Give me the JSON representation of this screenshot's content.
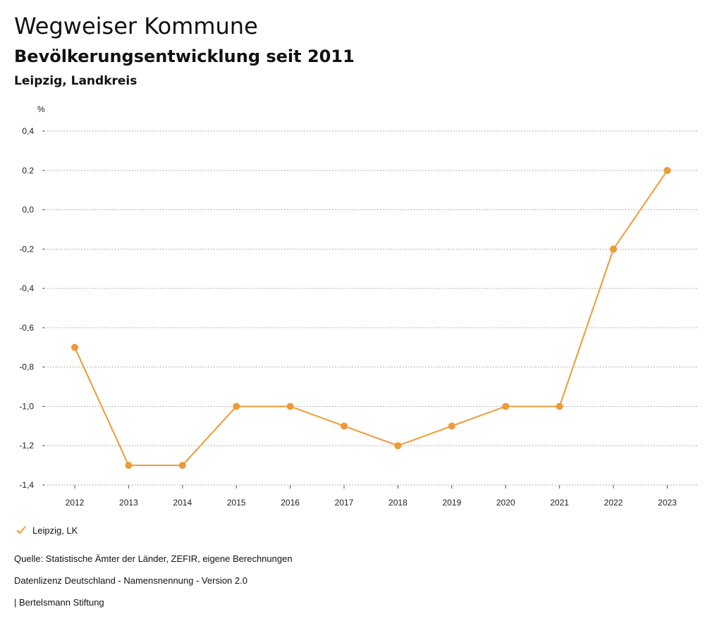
{
  "header": {
    "title": "Wegweiser Kommune",
    "subtitle": "Bevölkerungsentwicklung seit 2011",
    "region": "Leipzig, Landkreis"
  },
  "chart_data": {
    "type": "line",
    "ylabel": "%",
    "ylim": [
      -1.4,
      0.4
    ],
    "yticks": [
      0.4,
      0.2,
      0.0,
      -0.2,
      -0.4,
      -0.6,
      -0.8,
      -1.0,
      -1.2,
      -1.4
    ],
    "ytick_labels": [
      "0,4",
      "0.2",
      "0,0",
      "-0,2",
      "-0,4",
      "-0,6",
      "-0,8",
      "-1,0",
      "-1,2",
      "-1,4"
    ],
    "categories": [
      "2012",
      "2013",
      "2014",
      "2015",
      "2016",
      "2017",
      "2018",
      "2019",
      "2020",
      "2021",
      "2022",
      "2023"
    ],
    "series": [
      {
        "name": "Leipzig, LK",
        "color": "#EE9A36",
        "values": [
          -0.7,
          -1.3,
          -1.3,
          -1.0,
          -1.0,
          -1.1,
          -1.2,
          -1.1,
          -1.0,
          -1.0,
          -0.2,
          0.2
        ]
      }
    ],
    "grid": true,
    "legend_position": "bottom-left"
  },
  "legend": {
    "label": "Leipzig, LK"
  },
  "footer": {
    "source": "Quelle: Statistische Ämter der Länder, ZEFIR, eigene Berechnungen",
    "license": "Datenlizenz Deutschland - Namensnennung - Version 2.0",
    "publisher": "| Bertelsmann Stiftung"
  }
}
